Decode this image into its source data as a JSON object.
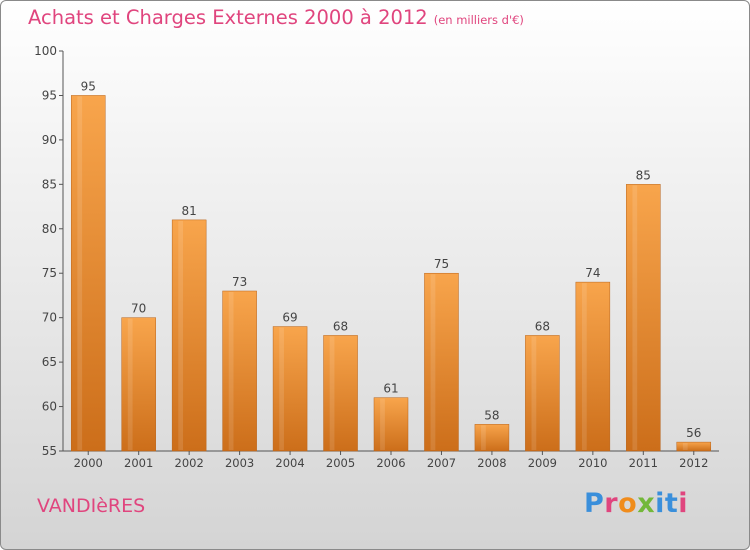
{
  "header": {
    "title": "Achats et Charges Externes 2000 à 2012",
    "unit": "(en milliers d'€)"
  },
  "footer": {
    "town": "VANDIèRES",
    "logo": "Proxiti"
  },
  "colors": {
    "bar_light": "#f8a54c",
    "bar_dark": "#cc6e1a",
    "text_accent": "#e0457e"
  },
  "chart_data": {
    "type": "bar",
    "title": "Achats et Charges Externes 2000 à 2012",
    "subtitle": "(en milliers d'€)",
    "xlabel": "",
    "ylabel": "",
    "categories": [
      "2000",
      "2001",
      "2002",
      "2003",
      "2004",
      "2005",
      "2006",
      "2007",
      "2008",
      "2009",
      "2010",
      "2011",
      "2012"
    ],
    "values": [
      95,
      70,
      81,
      73,
      69,
      68,
      61,
      75,
      58,
      68,
      74,
      85,
      56
    ],
    "ylim": [
      55,
      100
    ],
    "yticks": [
      55,
      60,
      65,
      70,
      75,
      80,
      85,
      90,
      95,
      100
    ],
    "grid": false,
    "legend": "none"
  }
}
